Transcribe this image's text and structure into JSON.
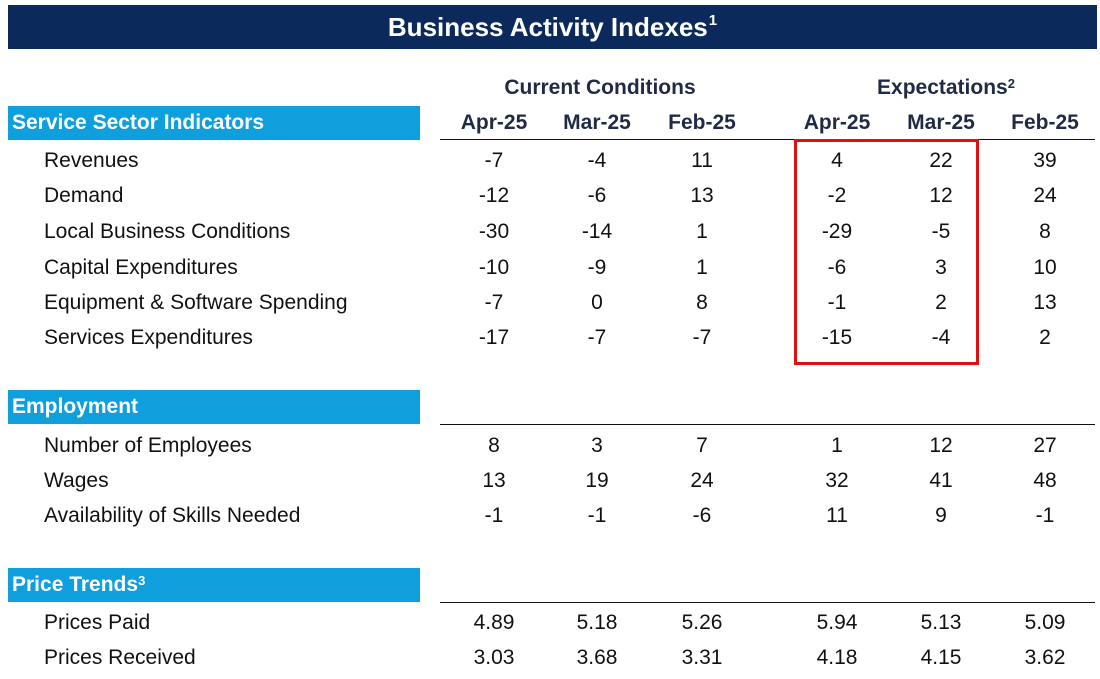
{
  "title": {
    "text": "Business Activity Indexes",
    "note": "1"
  },
  "groups": {
    "current": {
      "label": "Current Conditions"
    },
    "expectations": {
      "label": "Expectations",
      "note": "2"
    }
  },
  "columns": [
    "Apr-25",
    "Mar-25",
    "Feb-25",
    "Apr-25",
    "Mar-25",
    "Feb-25"
  ],
  "sections": [
    {
      "title": "Service Sector Indicators",
      "note": "",
      "rows": [
        {
          "label": "Revenues",
          "values": [
            "-7",
            "-4",
            "11",
            "4",
            "22",
            "39"
          ]
        },
        {
          "label": "Demand",
          "values": [
            "-12",
            "-6",
            "13",
            "-2",
            "12",
            "24"
          ]
        },
        {
          "label": "Local Business Conditions",
          "values": [
            "-30",
            "-14",
            "1",
            "-29",
            "-5",
            "8"
          ]
        },
        {
          "label": "Capital Expenditures",
          "values": [
            "-10",
            "-9",
            "1",
            "-6",
            "3",
            "10"
          ]
        },
        {
          "label": "Equipment & Software Spending",
          "values": [
            "-7",
            "0",
            "8",
            "-1",
            "2",
            "13"
          ]
        },
        {
          "label": "Services Expenditures",
          "values": [
            "-17",
            "-7",
            "-7",
            "-15",
            "-4",
            "2"
          ]
        }
      ]
    },
    {
      "title": "Employment",
      "note": "",
      "rows": [
        {
          "label": "Number of Employees",
          "values": [
            "8",
            "3",
            "7",
            "1",
            "12",
            "27"
          ]
        },
        {
          "label": "Wages",
          "values": [
            "13",
            "19",
            "24",
            "32",
            "41",
            "48"
          ]
        },
        {
          "label": "Availability of Skills Needed",
          "values": [
            "-1",
            "-1",
            "-6",
            "11",
            "9",
            "-1"
          ]
        }
      ]
    },
    {
      "title": "Price Trends",
      "note": "3",
      "rows": [
        {
          "label": "Prices Paid",
          "values": [
            "4.89",
            "5.18",
            "5.26",
            "5.94",
            "5.13",
            "5.09"
          ]
        },
        {
          "label": "Prices Received",
          "values": [
            "3.03",
            "3.68",
            "3.31",
            "4.18",
            "4.15",
            "3.62"
          ]
        }
      ]
    }
  ],
  "colors": {
    "title_bg": "#0b2a5b",
    "section_bg": "#0e9fdc",
    "highlight_border": "#e01010"
  }
}
